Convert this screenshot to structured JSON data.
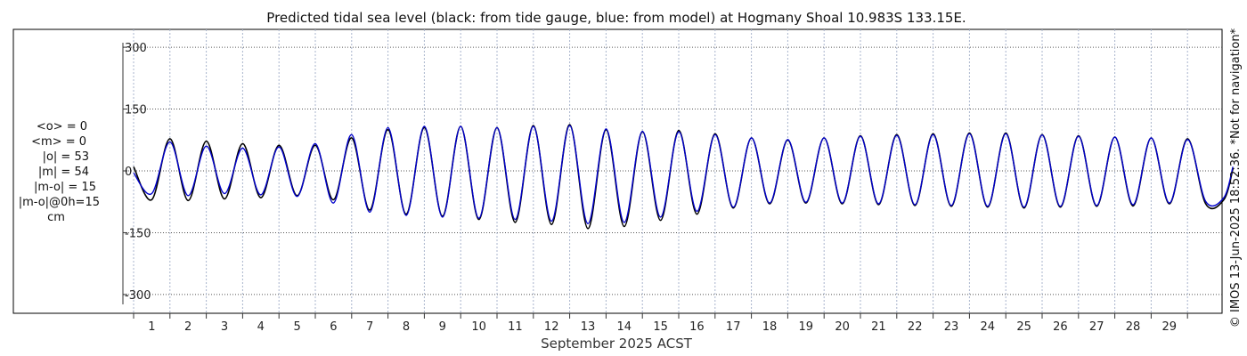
{
  "chart_data": {
    "type": "line",
    "title": "Predicted tidal sea level (black: from tide gauge, blue: from model) at Hogmany Shoal 10.983S 133.15E.",
    "xlabel": "September 2025 ACST",
    "ylabel": "",
    "xlim": [
      0.5,
      30.75
    ],
    "ylim": [
      -300,
      300
    ],
    "x_tick_labels": [
      "1",
      "2",
      "3",
      "4",
      "5",
      "6",
      "7",
      "8",
      "9",
      "10",
      "11",
      "12",
      "13",
      "14",
      "15",
      "16",
      "17",
      "18",
      "19",
      "20",
      "21",
      "22",
      "23",
      "24",
      "25",
      "26",
      "27",
      "28",
      "29"
    ],
    "y_tick_labels": [
      "300",
      "150",
      "0",
      "-150",
      "-300"
    ],
    "y_tick_values": [
      300,
      150,
      0,
      -150,
      -300
    ],
    "grid": "dotted",
    "series": [
      {
        "name": "from tide gauge",
        "color": "#000000",
        "x": [
          0.5,
          1.0,
          1.5,
          2.0,
          2.5,
          3.0,
          3.5,
          4.0,
          4.5,
          5.0,
          5.5,
          6.0,
          6.5,
          7.0,
          7.5,
          8.0,
          8.5,
          9.0,
          9.5,
          10.0,
          10.5,
          11.0,
          11.5,
          12.0,
          12.5,
          13.0,
          13.5,
          14.0,
          14.5,
          15.0,
          15.5,
          16.0,
          16.5,
          17.0,
          17.5,
          18.0,
          18.5,
          19.0,
          19.5,
          20.0,
          20.5,
          21.0,
          21.5,
          22.0,
          22.5,
          23.0,
          23.5,
          24.0,
          24.5,
          25.0,
          25.5,
          26.0,
          26.5,
          27.0,
          27.5,
          28.0,
          28.5,
          29.0,
          29.5,
          30.0,
          30.5,
          30.75
        ],
        "y": [
          10,
          -70,
          78,
          -72,
          72,
          -68,
          66,
          -65,
          62,
          -60,
          62,
          -70,
          80,
          -95,
          100,
          -105,
          105,
          -110,
          108,
          -118,
          105,
          -125,
          110,
          -130,
          112,
          -140,
          100,
          -135,
          95,
          -120,
          98,
          -105,
          90,
          -90,
          80,
          -80,
          75,
          -78,
          80,
          -80,
          85,
          -82,
          88,
          -84,
          90,
          -86,
          92,
          -88,
          92,
          -90,
          88,
          -88,
          85,
          -86,
          82,
          -85,
          80,
          -80,
          78,
          -80,
          -70,
          5
        ]
      },
      {
        "name": "from model",
        "color": "#0000cc",
        "x": [
          0.5,
          1.0,
          1.5,
          2.0,
          2.5,
          3.0,
          3.5,
          4.0,
          4.5,
          5.0,
          5.5,
          6.0,
          6.5,
          7.0,
          7.5,
          8.0,
          8.5,
          9.0,
          9.5,
          10.0,
          10.5,
          11.0,
          11.5,
          12.0,
          12.5,
          13.0,
          13.5,
          14.0,
          14.5,
          15.0,
          15.5,
          16.0,
          16.5,
          17.0,
          17.5,
          18.0,
          18.5,
          19.0,
          19.5,
          20.0,
          20.5,
          21.0,
          21.5,
          22.0,
          22.5,
          23.0,
          23.5,
          24.0,
          24.5,
          25.0,
          25.5,
          26.0,
          26.5,
          27.0,
          27.5,
          28.0,
          28.5,
          29.0,
          29.5,
          30.0,
          30.5,
          30.75
        ],
        "y": [
          -5,
          -55,
          70,
          -60,
          60,
          -55,
          55,
          -58,
          58,
          -62,
          66,
          -78,
          88,
          -100,
          105,
          -108,
          108,
          -112,
          108,
          -115,
          105,
          -118,
          108,
          -122,
          110,
          -128,
          102,
          -125,
          96,
          -112,
          95,
          -98,
          88,
          -88,
          80,
          -78,
          76,
          -76,
          80,
          -78,
          84,
          -80,
          86,
          -82,
          88,
          -84,
          90,
          -86,
          90,
          -88,
          87,
          -86,
          84,
          -84,
          82,
          -82,
          80,
          -78,
          76,
          -74,
          -65,
          10
        ]
      }
    ],
    "stats": [
      "<o> = 0",
      "<m> = 0",
      "|o| = 53",
      "|m| = 54",
      "|m-o| = 15",
      "|m-o|@0h=15",
      "cm"
    ]
  },
  "credit": "© IMOS 13-Jun-2025 18:52:36. *Not for navigation*"
}
